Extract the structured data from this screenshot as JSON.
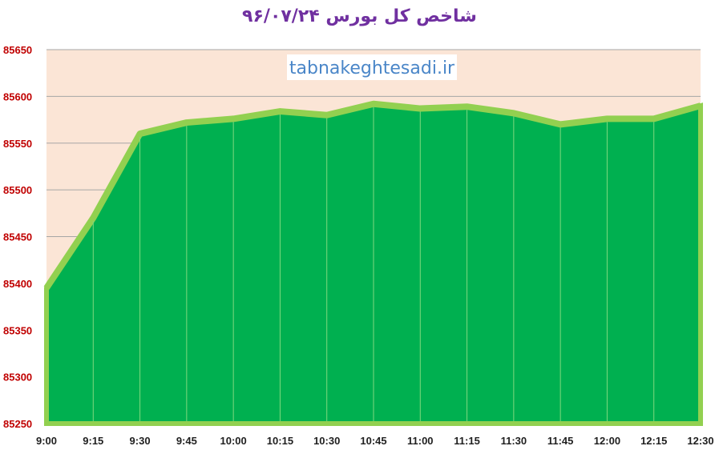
{
  "chart_data": {
    "type": "area",
    "title": "شاخص کل بورس ۹۶/۰۷/۲۴",
    "watermark": "tabnakeghtesadi.ir",
    "categories": [
      "9:00",
      "9:15",
      "9:30",
      "9:45",
      "10:00",
      "10:15",
      "10:30",
      "10:45",
      "11:00",
      "11:15",
      "11:30",
      "11:45",
      "12:00",
      "12:15",
      "12:30"
    ],
    "series": [
      {
        "values": [
          85395,
          85470,
          85560,
          85572,
          85576,
          85584,
          85580,
          85592,
          85587,
          85589,
          85582,
          85570,
          85576,
          85576,
          85590
        ]
      }
    ],
    "ylim": [
      85250,
      85650
    ],
    "yticks": [
      85250,
      85300,
      85350,
      85400,
      85450,
      85500,
      85550,
      85600,
      85650
    ],
    "grid": true,
    "colors": {
      "fill": "#00b050",
      "outline": "#92d050",
      "plot_bg": "#fbe5d6",
      "title": "#7030a0",
      "ytick": "#c00000",
      "watermark": "#4a86c8"
    }
  }
}
